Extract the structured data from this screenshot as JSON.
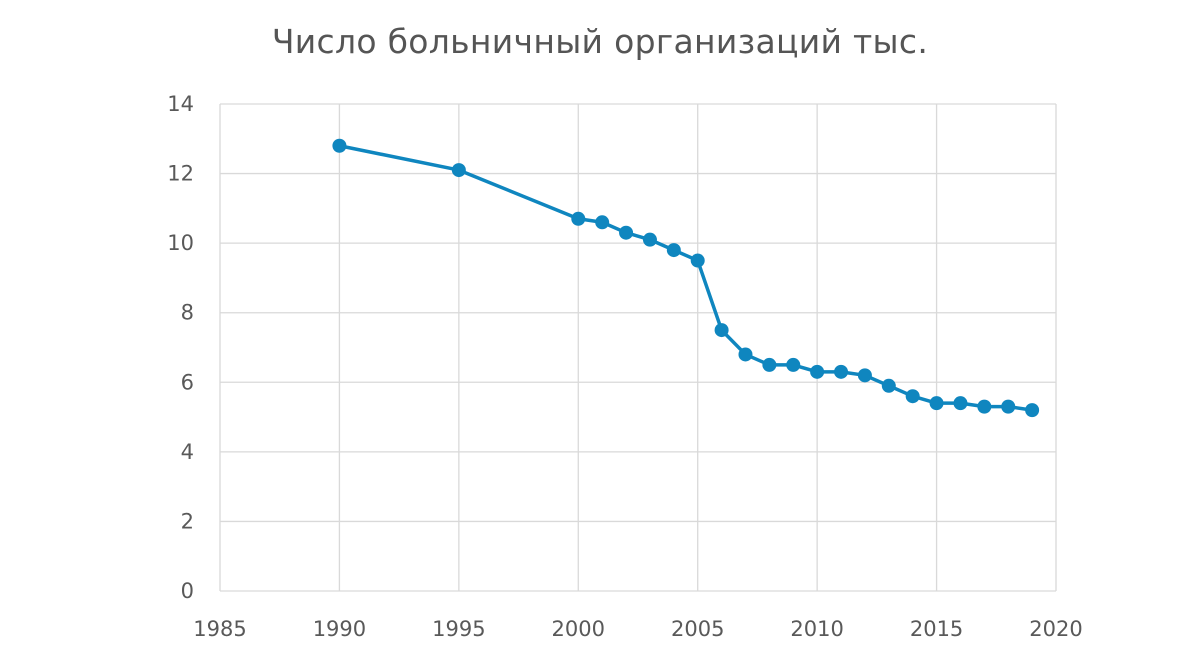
{
  "colors": {
    "series": "#0f86bf",
    "grid": "#d9d9d9",
    "text": "#595959",
    "title": "#555555"
  },
  "chart_data": {
    "type": "line",
    "title": "Число больничный организаций тыс.",
    "xlabel": "",
    "ylabel": "",
    "xlim": [
      1985,
      2020
    ],
    "ylim": [
      0,
      14
    ],
    "x_ticks": [
      1985,
      1990,
      1995,
      2000,
      2005,
      2010,
      2015,
      2020
    ],
    "y_ticks": [
      0,
      2,
      4,
      6,
      8,
      10,
      12,
      14
    ],
    "grid": true,
    "legend": "none",
    "series": [
      {
        "x": [
          1990,
          1995,
          2000,
          2001,
          2002,
          2003,
          2004,
          2005,
          2006,
          2007,
          2008,
          2009,
          2010,
          2011,
          2012,
          2013,
          2014,
          2015,
          2016,
          2017,
          2018,
          2019
        ],
        "values": [
          12.8,
          12.1,
          10.7,
          10.6,
          10.3,
          10.1,
          9.8,
          9.5,
          7.5,
          6.8,
          6.5,
          6.5,
          6.3,
          6.3,
          6.2,
          5.9,
          5.6,
          5.4,
          5.4,
          5.3,
          5.3,
          5.2
        ]
      }
    ]
  }
}
